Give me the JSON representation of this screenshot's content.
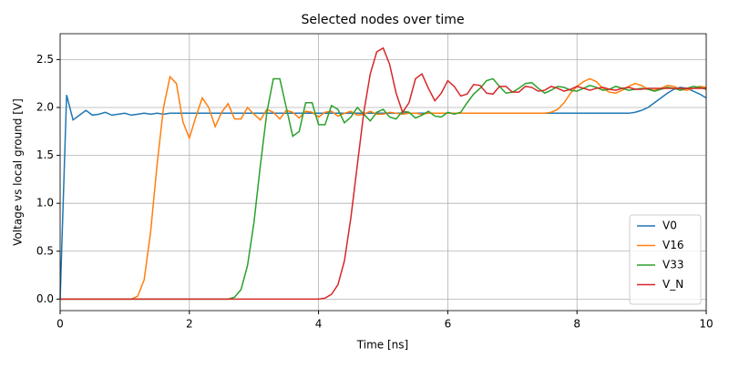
{
  "chart_data": {
    "type": "line",
    "title": "Selected nodes over time",
    "x_label": "Time [ns]",
    "y_label": "Voltage vs local ground [V]",
    "x": [
      0,
      0.1,
      0.2,
      0.3,
      0.4,
      0.5,
      0.6,
      0.7,
      0.8,
      0.9,
      1,
      1.1,
      1.2,
      1.3,
      1.4,
      1.5,
      1.6,
      1.7,
      1.8,
      1.9,
      2,
      2.1,
      2.2,
      2.3,
      2.4,
      2.5,
      2.6,
      2.7,
      2.8,
      2.9,
      3,
      3.1,
      3.2,
      3.3,
      3.4,
      3.5,
      3.6,
      3.7,
      3.8,
      3.9,
      4,
      4.1,
      4.2,
      4.3,
      4.4,
      4.5,
      4.6,
      4.7,
      4.8,
      4.9,
      5,
      5.1,
      5.2,
      5.3,
      5.4,
      5.5,
      5.6,
      5.7,
      5.8,
      5.9,
      6,
      6.1,
      6.2,
      6.3,
      6.4,
      6.5,
      6.6,
      6.7,
      6.8,
      6.9,
      7,
      7.1,
      7.2,
      7.3,
      7.4,
      7.5,
      7.6,
      7.7,
      7.8,
      7.9,
      8,
      8.1,
      8.2,
      8.3,
      8.4,
      8.5,
      8.6,
      8.7,
      8.8,
      8.9,
      9,
      9.1,
      9.2,
      9.3,
      9.4,
      9.5,
      9.6,
      9.7,
      9.8,
      9.9,
      10
    ],
    "series": [
      {
        "name": "V0",
        "color": "#1f77b4",
        "values": [
          0,
          2.13,
          1.87,
          1.92,
          1.97,
          1.92,
          1.93,
          1.95,
          1.92,
          1.93,
          1.94,
          1.92,
          1.93,
          1.94,
          1.93,
          1.94,
          1.93,
          1.94,
          1.94,
          1.94,
          1.94,
          1.94,
          1.94,
          1.94,
          1.94,
          1.94,
          1.94,
          1.94,
          1.94,
          1.94,
          1.94,
          1.94,
          1.94,
          1.94,
          1.94,
          1.94,
          1.94,
          1.94,
          1.94,
          1.94,
          1.94,
          1.94,
          1.94,
          1.94,
          1.94,
          1.94,
          1.94,
          1.94,
          1.94,
          1.94,
          1.94,
          1.94,
          1.94,
          1.94,
          1.94,
          1.94,
          1.94,
          1.94,
          1.94,
          1.94,
          1.94,
          1.94,
          1.94,
          1.94,
          1.94,
          1.94,
          1.94,
          1.94,
          1.94,
          1.94,
          1.94,
          1.94,
          1.94,
          1.94,
          1.94,
          1.94,
          1.94,
          1.94,
          1.94,
          1.94,
          1.94,
          1.94,
          1.94,
          1.94,
          1.94,
          1.94,
          1.94,
          1.94,
          1.94,
          1.95,
          1.97,
          2.0,
          2.05,
          2.1,
          2.15,
          2.19,
          2.21,
          2.2,
          2.17,
          2.14,
          2.1
        ]
      },
      {
        "name": "V16",
        "color": "#ff7f0e",
        "values": [
          0,
          0,
          0,
          0,
          0,
          0,
          0,
          0,
          0,
          0,
          0,
          0,
          0.03,
          0.2,
          0.7,
          1.4,
          2.0,
          2.32,
          2.25,
          1.85,
          1.68,
          1.9,
          2.1,
          2.0,
          1.8,
          1.95,
          2.04,
          1.88,
          1.88,
          2.0,
          1.93,
          1.87,
          1.98,
          1.95,
          1.88,
          1.97,
          1.95,
          1.89,
          1.96,
          1.95,
          1.9,
          1.95,
          1.96,
          1.91,
          1.94,
          1.96,
          1.92,
          1.93,
          1.96,
          1.93,
          1.93,
          1.95,
          1.94,
          1.93,
          1.94,
          1.94,
          1.93,
          1.94,
          1.94,
          1.94,
          1.94,
          1.94,
          1.94,
          1.94,
          1.94,
          1.94,
          1.94,
          1.94,
          1.94,
          1.94,
          1.94,
          1.94,
          1.94,
          1.94,
          1.94,
          1.94,
          1.95,
          1.98,
          2.05,
          2.15,
          2.22,
          2.27,
          2.3,
          2.27,
          2.2,
          2.16,
          2.15,
          2.18,
          2.22,
          2.25,
          2.23,
          2.19,
          2.18,
          2.2,
          2.23,
          2.22,
          2.19,
          2.18,
          2.2,
          2.22,
          2.21
        ]
      },
      {
        "name": "V33",
        "color": "#2ca02c",
        "values": [
          0,
          0,
          0,
          0,
          0,
          0,
          0,
          0,
          0,
          0,
          0,
          0,
          0,
          0,
          0,
          0,
          0,
          0,
          0,
          0,
          0,
          0,
          0,
          0,
          0,
          0,
          0,
          0.02,
          0.1,
          0.35,
          0.8,
          1.4,
          1.95,
          2.3,
          2.3,
          2.0,
          1.7,
          1.75,
          2.05,
          2.05,
          1.82,
          1.82,
          2.02,
          1.98,
          1.84,
          1.9,
          2.0,
          1.93,
          1.86,
          1.95,
          1.98,
          1.9,
          1.88,
          1.96,
          1.95,
          1.89,
          1.92,
          1.96,
          1.91,
          1.9,
          1.95,
          1.93,
          1.95,
          2.05,
          2.14,
          2.2,
          2.28,
          2.3,
          2.22,
          2.15,
          2.16,
          2.2,
          2.25,
          2.26,
          2.2,
          2.15,
          2.18,
          2.22,
          2.21,
          2.18,
          2.17,
          2.2,
          2.23,
          2.21,
          2.18,
          2.19,
          2.22,
          2.2,
          2.18,
          2.19,
          2.2,
          2.19,
          2.17,
          2.19,
          2.21,
          2.2,
          2.18,
          2.2,
          2.22,
          2.21,
          2.19
        ]
      },
      {
        "name": "V_N",
        "color": "#d62728",
        "values": [
          0,
          0,
          0,
          0,
          0,
          0,
          0,
          0,
          0,
          0,
          0,
          0,
          0,
          0,
          0,
          0,
          0,
          0,
          0,
          0,
          0,
          0,
          0,
          0,
          0,
          0,
          0,
          0,
          0,
          0,
          0,
          0,
          0,
          0,
          0,
          0,
          0,
          0,
          0,
          0,
          0,
          0.01,
          0.05,
          0.15,
          0.4,
          0.85,
          1.4,
          1.95,
          2.35,
          2.58,
          2.62,
          2.45,
          2.15,
          1.95,
          2.05,
          2.3,
          2.35,
          2.2,
          2.07,
          2.15,
          2.28,
          2.22,
          2.12,
          2.14,
          2.24,
          2.23,
          2.15,
          2.14,
          2.22,
          2.22,
          2.16,
          2.16,
          2.22,
          2.21,
          2.17,
          2.18,
          2.22,
          2.2,
          2.17,
          2.19,
          2.22,
          2.2,
          2.18,
          2.2,
          2.21,
          2.19,
          2.18,
          2.2,
          2.21,
          2.19,
          2.19,
          2.2,
          2.2,
          2.2,
          2.2,
          2.2,
          2.2,
          2.2,
          2.2,
          2.2,
          2.2
        ]
      }
    ],
    "xlim": [
      0,
      10
    ],
    "xticks": [
      0,
      2,
      4,
      6,
      8,
      10
    ],
    "ylim": [
      -0.12,
      2.77
    ],
    "yticks": [
      {
        "value": 0,
        "label": "0.0"
      },
      0.5,
      {
        "value": 1,
        "label": "1.0"
      },
      1.5,
      {
        "value": 2,
        "label": "2.0"
      },
      2.5
    ],
    "grid": true,
    "legend": "lower right"
  }
}
